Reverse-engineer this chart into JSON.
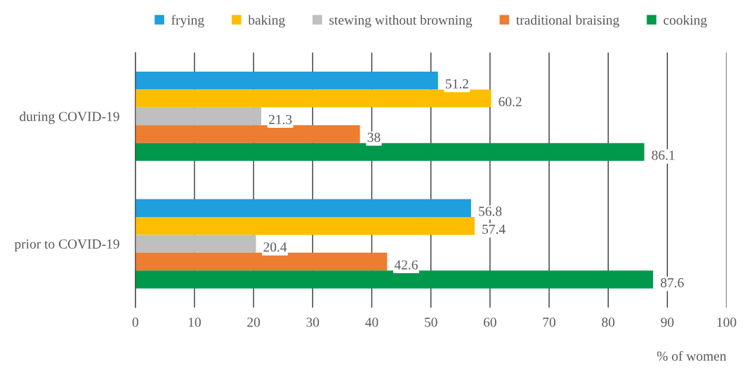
{
  "chart_data": {
    "type": "bar",
    "orientation": "horizontal",
    "categories": [
      "during COVID-19",
      "prior to COVID-19"
    ],
    "series": [
      {
        "name": "frying",
        "color": "#1f9fdb",
        "values": [
          51.2,
          56.8
        ]
      },
      {
        "name": "baking",
        "color": "#fdbd00",
        "values": [
          60.2,
          57.4
        ]
      },
      {
        "name": "stewing without browning",
        "color": "#bfbfbf",
        "values": [
          21.3,
          20.4
        ]
      },
      {
        "name": "traditional braising",
        "color": "#ed7d31",
        "values": [
          38,
          42.6
        ]
      },
      {
        "name": "cooking",
        "color": "#00994c",
        "values": [
          86.1,
          87.6
        ]
      }
    ],
    "xlim": [
      0,
      100
    ],
    "xticks": [
      0,
      10,
      20,
      30,
      40,
      50,
      60,
      70,
      80,
      90,
      100
    ],
    "xlabel": "% of women",
    "grid": "x",
    "legend": "top",
    "data_labels": true
  }
}
